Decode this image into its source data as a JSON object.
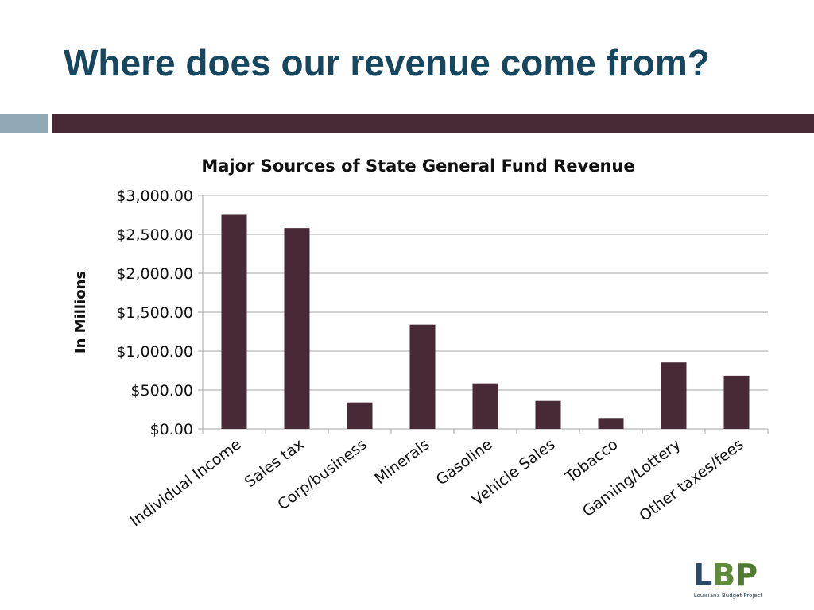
{
  "slide": {
    "title": "Where does our revenue come from?"
  },
  "colors": {
    "title": "#17475e",
    "accent_bar_left": "#8fa9b6",
    "accent_bar_right": "#472a35",
    "bar_fill": "#472a35",
    "grid": "#a6a6a6"
  },
  "chart_data": {
    "type": "bar",
    "title": "Major Sources of State General Fund Revenue",
    "xlabel": "",
    "ylabel": "In Millions",
    "ylim": [
      0,
      3000
    ],
    "y_ticks": [
      0,
      500,
      1000,
      1500,
      2000,
      2500,
      3000
    ],
    "y_tick_labels": [
      "$0.00",
      "$500.00",
      "$1,000.00",
      "$1,500.00",
      "$2,000.00",
      "$2,500.00",
      "$3,000.00"
    ],
    "grid": true,
    "categories": [
      "Individual Income",
      "Sales tax",
      "Corp/business",
      "Minerals",
      "Gasoline",
      "Vehicle Sales",
      "Tobacco",
      "Gaming/Lottery",
      "Other taxes/fees"
    ],
    "values": [
      2750,
      2580,
      340,
      1340,
      585,
      360,
      140,
      855,
      685
    ]
  },
  "logo": {
    "letters": [
      "L",
      "B",
      "P"
    ],
    "caption": "Louisiana Budget Project",
    "colors": [
      "#2c4a66",
      "#5e8b3a",
      "#4f7a2f"
    ]
  }
}
